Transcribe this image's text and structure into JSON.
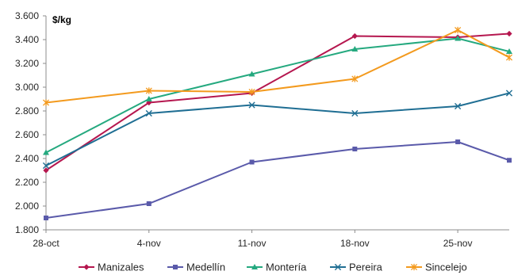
{
  "chart_data": {
    "type": "line",
    "unit_label": "$/kg",
    "x": [
      "28-oct",
      "",
      "4-nov",
      "",
      "11-nov",
      "",
      "18-nov",
      "",
      "25-nov",
      ""
    ],
    "x_ticks": [
      "28-oct",
      "4-nov",
      "11-nov",
      "18-nov",
      "25-nov"
    ],
    "ylim": [
      1800,
      3600
    ],
    "y_ticks": [
      1800,
      2000,
      2200,
      2400,
      2600,
      2800,
      3000,
      3200,
      3400,
      3600
    ],
    "y_tick_labels": [
      "1.800",
      "2.000",
      "2.200",
      "2.400",
      "2.600",
      "2.800",
      "3.000",
      "3.200",
      "3.400",
      "3.600"
    ],
    "grid": false,
    "legend_position": "bottom",
    "series": [
      {
        "name": "Manizales",
        "color": "#B5174F",
        "marker": "diamond",
        "values": [
          2300,
          null,
          2870,
          null,
          2950,
          null,
          3430,
          null,
          3420,
          3450
        ]
      },
      {
        "name": "Medellín",
        "color": "#5A5AAA",
        "marker": "square",
        "values": [
          1900,
          null,
          2020,
          null,
          2370,
          null,
          2480,
          null,
          2540,
          2385
        ]
      },
      {
        "name": "Montería",
        "color": "#25A97F",
        "marker": "triangle",
        "values": [
          2450,
          null,
          2900,
          null,
          3110,
          null,
          3320,
          null,
          3410,
          3300
        ]
      },
      {
        "name": "Pereira",
        "color": "#1F6E93",
        "marker": "x",
        "values": [
          2340,
          null,
          2780,
          null,
          2850,
          null,
          2780,
          null,
          2840,
          2950
        ]
      },
      {
        "name": "Sincelejo",
        "color": "#F39A1E",
        "marker": "asterisk",
        "values": [
          2870,
          null,
          2970,
          null,
          2960,
          null,
          3070,
          null,
          3480,
          3250
        ]
      }
    ]
  }
}
